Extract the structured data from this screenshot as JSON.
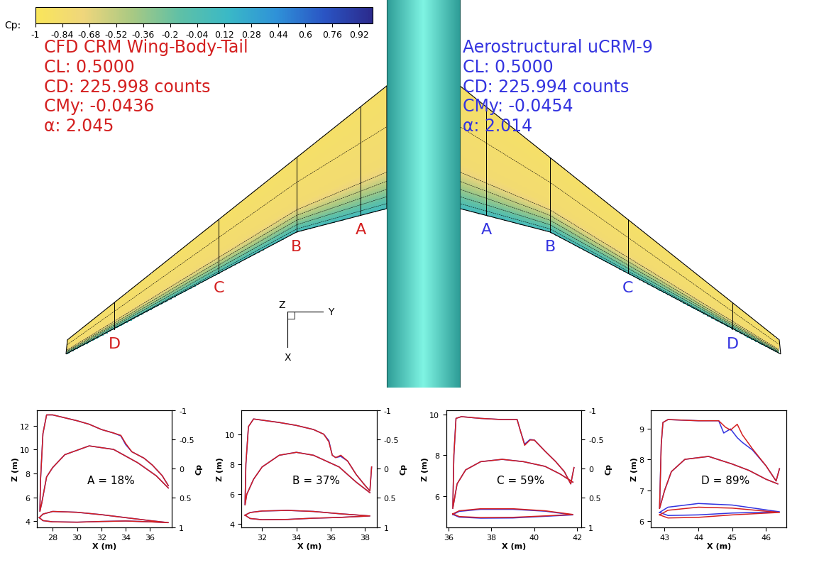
{
  "chart_data": [
    {
      "type": "contour",
      "colorbar": {
        "label": "Cp:",
        "range": [
          -1,
          1.0
        ],
        "ticks": [
          -1,
          -0.84,
          -0.68,
          -0.52,
          -0.36,
          -0.2,
          -0.04,
          0.12,
          0.28,
          0.44,
          0.6,
          0.76,
          0.92
        ]
      },
      "panels": [
        {
          "color": "#d42020",
          "lines": [
            "CFD CRM Wing-Body-Tail",
            "CL: 0.5000",
            "CD: 225.998 counts",
            "CMy: -0.0436",
            "α: 2.045"
          ]
        },
        {
          "color": "#3434e0",
          "lines": [
            "Aerostructural uCRM-9",
            "CL: 0.5000",
            "CD: 225.994 counts",
            "CMy: -0.0454",
            "α: 2.014"
          ]
        }
      ],
      "section_labels": [
        "A",
        "B",
        "C",
        "D"
      ],
      "triad_labels": [
        "Z",
        "Y",
        "X"
      ]
    },
    {
      "type": "line",
      "annotation": "A = 18%",
      "xlabel": "X (m)",
      "ylabel": "Z (m)",
      "y2label": "Cp",
      "xlim": [
        26.7,
        37.8
      ],
      "ylim": [
        3.5,
        13.3
      ],
      "y2lim": [
        1,
        -1
      ],
      "xticks": [
        28,
        30,
        32,
        34,
        36
      ],
      "yticks": [
        4,
        6,
        8,
        10,
        12
      ],
      "y2ticks": [
        -1,
        -0.5,
        0,
        0.5,
        1
      ],
      "series": [
        {
          "color": "#3434e0",
          "axis": "y2",
          "x": [
            37.5,
            36.5,
            35,
            33,
            31,
            29,
            28,
            27.5,
            27.1,
            26.95,
            27.0,
            27.2,
            27.5,
            28,
            30,
            31,
            32,
            33,
            33.6,
            34.0,
            34.5,
            35.5,
            36.2,
            37,
            37.5
          ],
          "values": [
            0.33,
            0.12,
            -0.1,
            -0.33,
            -0.39,
            -0.24,
            -0.02,
            0.14,
            0.59,
            0.73,
            0.2,
            -0.6,
            -0.92,
            -0.92,
            -0.82,
            -0.76,
            -0.67,
            -0.61,
            -0.56,
            -0.41,
            -0.29,
            -0.18,
            -0.06,
            0.12,
            0.29
          ]
        },
        {
          "color": "#d42020",
          "axis": "y2",
          "x": [
            37.5,
            36.5,
            35,
            33,
            31,
            29,
            28,
            27.5,
            27.1,
            26.95,
            27.0,
            27.2,
            27.5,
            28,
            30,
            31,
            32,
            33,
            33.6,
            34.0,
            34.5,
            35.5,
            36.2,
            37,
            37.5
          ],
          "values": [
            0.33,
            0.12,
            -0.1,
            -0.33,
            -0.39,
            -0.24,
            -0.02,
            0.14,
            0.59,
            0.73,
            0.2,
            -0.6,
            -0.92,
            -0.92,
            -0.82,
            -0.76,
            -0.67,
            -0.61,
            -0.57,
            -0.43,
            -0.29,
            -0.18,
            -0.06,
            0.12,
            0.29
          ]
        },
        {
          "color": "#3434e0",
          "x": [
            26.9,
            27.2,
            28,
            30,
            32,
            34,
            36,
            37.5,
            36,
            34,
            32,
            30,
            28,
            27.2,
            26.9
          ],
          "values": [
            4.3,
            4.6,
            4.82,
            4.75,
            4.55,
            4.3,
            4.05,
            3.88,
            3.95,
            4.02,
            3.98,
            3.92,
            3.95,
            4.05,
            4.3
          ]
        },
        {
          "color": "#d42020",
          "x": [
            26.9,
            27.2,
            28,
            30,
            32,
            34,
            36,
            37.5,
            36,
            34,
            32,
            30,
            28,
            27.2,
            26.9
          ],
          "values": [
            4.3,
            4.6,
            4.82,
            4.75,
            4.55,
            4.3,
            4.05,
            3.88,
            3.95,
            4.02,
            3.98,
            3.92,
            3.95,
            4.05,
            4.3
          ]
        }
      ]
    },
    {
      "type": "line",
      "annotation": "B = 37%",
      "xlabel": "X (m)",
      "ylabel": "Z (m)",
      "y2label": "Cp",
      "xlim": [
        30.8,
        38.7
      ],
      "ylim": [
        3.8,
        11.6
      ],
      "y2lim": [
        1,
        -1
      ],
      "xticks": [
        32,
        34,
        36,
        38
      ],
      "yticks": [
        4,
        6,
        8,
        10
      ],
      "y2ticks": [
        -1,
        -0.5,
        0,
        0.5,
        1
      ],
      "series": [
        {
          "color": "#3434e0",
          "axis": "y2",
          "x": [
            38.3,
            37.5,
            36.5,
            35,
            34,
            33,
            32,
            31.5,
            31.1,
            31.0,
            31.05,
            31.2,
            31.5,
            32,
            33,
            34,
            35,
            35.6,
            35.9,
            36.1,
            36.3,
            36.6,
            37.0,
            37.5,
            38.0,
            38.3,
            38.4
          ],
          "values": [
            0.41,
            0.23,
            -0.03,
            -0.23,
            -0.28,
            -0.23,
            -0.03,
            0.18,
            0.44,
            0.62,
            -0.08,
            -0.72,
            -0.85,
            -0.83,
            -0.79,
            -0.74,
            -0.67,
            -0.59,
            -0.48,
            -0.23,
            -0.19,
            -0.21,
            -0.13,
            0.1,
            0.28,
            0.38,
            -0.03
          ]
        },
        {
          "color": "#d42020",
          "axis": "y2",
          "x": [
            38.3,
            37.5,
            36.5,
            35,
            34,
            33,
            32,
            31.5,
            31.1,
            31.0,
            31.05,
            31.2,
            31.5,
            32,
            33,
            34,
            35,
            35.6,
            35.9,
            36.1,
            36.3,
            36.6,
            37.0,
            37.5,
            38.0,
            38.3,
            38.4
          ],
          "values": [
            0.41,
            0.23,
            -0.03,
            -0.23,
            -0.28,
            -0.23,
            -0.03,
            0.18,
            0.44,
            0.62,
            -0.08,
            -0.72,
            -0.85,
            -0.83,
            -0.79,
            -0.74,
            -0.67,
            -0.59,
            -0.46,
            -0.23,
            -0.19,
            -0.23,
            -0.13,
            0.1,
            0.28,
            0.38,
            -0.03
          ]
        },
        {
          "color": "#3434e0",
          "x": [
            31.0,
            31.3,
            32,
            33.5,
            35,
            36.5,
            38.3,
            36.5,
            35,
            33.5,
            32,
            31.3,
            31.0
          ],
          "values": [
            4.6,
            4.78,
            4.88,
            4.92,
            4.85,
            4.7,
            4.55,
            4.45,
            4.4,
            4.32,
            4.3,
            4.38,
            4.6
          ]
        },
        {
          "color": "#d42020",
          "x": [
            31.0,
            31.3,
            32,
            33.5,
            35,
            36.5,
            38.3,
            36.5,
            35,
            33.5,
            32,
            31.3,
            31.0
          ],
          "values": [
            4.6,
            4.78,
            4.88,
            4.92,
            4.85,
            4.7,
            4.55,
            4.45,
            4.4,
            4.32,
            4.3,
            4.38,
            4.6
          ]
        }
      ]
    },
    {
      "type": "line",
      "annotation": "C = 59%",
      "xlabel": "X (m)",
      "ylabel": "Z (m)",
      "y2label": "Cp",
      "xlim": [
        35.9,
        42.2
      ],
      "ylim": [
        4.5,
        10.2
      ],
      "y2lim": [
        1,
        -1
      ],
      "xticks": [
        36,
        38,
        40,
        42
      ],
      "yticks": [
        6,
        8,
        10
      ],
      "y2ticks": [
        -1,
        -0.5,
        0,
        0.5,
        1
      ],
      "series": [
        {
          "color": "#3434e0",
          "axis": "y2",
          "x": [
            41.8,
            41.2,
            40.5,
            39.5,
            38.5,
            37.5,
            36.8,
            36.4,
            36.2,
            36.25,
            36.35,
            36.6,
            37.5,
            38.5,
            39.2,
            39.35,
            39.55,
            39.8,
            40.0,
            40.5,
            41.0,
            41.4,
            41.7,
            41.85
          ],
          "values": [
            0.23,
            0.09,
            -0.04,
            -0.12,
            -0.16,
            -0.12,
            0.02,
            0.26,
            0.68,
            -0.23,
            -0.86,
            -0.89,
            -0.86,
            -0.84,
            -0.84,
            -0.65,
            -0.42,
            -0.5,
            -0.49,
            -0.3,
            -0.12,
            0.05,
            0.26,
            -0.02
          ]
        },
        {
          "color": "#d42020",
          "axis": "y2",
          "x": [
            41.8,
            41.2,
            40.5,
            39.5,
            38.5,
            37.5,
            36.8,
            36.4,
            36.2,
            36.25,
            36.35,
            36.6,
            37.5,
            38.5,
            39.2,
            39.35,
            39.55,
            39.8,
            40.0,
            40.5,
            41.0,
            41.4,
            41.7,
            41.85
          ],
          "values": [
            0.23,
            0.09,
            -0.04,
            -0.12,
            -0.16,
            -0.12,
            0.02,
            0.26,
            0.68,
            -0.23,
            -0.86,
            -0.89,
            -0.86,
            -0.84,
            -0.84,
            -0.65,
            -0.4,
            -0.49,
            -0.49,
            -0.3,
            -0.12,
            0.05,
            0.26,
            -0.02
          ]
        },
        {
          "color": "#3434e0",
          "x": [
            36.2,
            36.5,
            37.5,
            39,
            40.5,
            41.8,
            40.5,
            39,
            37.5,
            36.5,
            36.2
          ],
          "values": [
            5.12,
            5.27,
            5.37,
            5.37,
            5.28,
            5.1,
            5.03,
            4.95,
            4.94,
            4.99,
            5.12
          ]
        },
        {
          "color": "#d42020",
          "x": [
            36.2,
            36.5,
            37.5,
            39,
            40.5,
            41.8,
            40.5,
            39,
            37.5,
            36.5,
            36.2
          ],
          "values": [
            5.15,
            5.3,
            5.4,
            5.4,
            5.3,
            5.12,
            5.05,
            4.98,
            4.97,
            5.02,
            5.15
          ]
        }
      ]
    },
    {
      "type": "line",
      "annotation": "D = 89%",
      "xlabel": "X (m)",
      "ylabel": "Z (m)",
      "xlim": [
        42.6,
        46.6
      ],
      "ylim": [
        5.8,
        9.6
      ],
      "y2lim": [
        1,
        -1
      ],
      "xticks": [
        43,
        44,
        45,
        46
      ],
      "yticks": [
        6,
        7,
        8,
        9
      ],
      "series": [
        {
          "color": "#3434e0",
          "axis": "y2",
          "x": [
            46.35,
            46.0,
            45.5,
            45.0,
            44.3,
            43.6,
            43.2,
            43.0,
            42.85,
            42.9,
            42.95,
            43.1,
            44.0,
            44.6,
            44.75,
            44.95,
            45.15,
            45.3,
            45.6,
            46.0,
            46.3,
            46.4
          ],
          "values": [
            0.26,
            0.18,
            0.03,
            -0.08,
            -0.21,
            -0.16,
            0.05,
            0.37,
            0.68,
            -0.42,
            -0.79,
            -0.84,
            -0.82,
            -0.82,
            -0.61,
            -0.68,
            -0.53,
            -0.45,
            -0.32,
            -0.05,
            0.21,
            0.0
          ]
        },
        {
          "color": "#d42020",
          "axis": "y2",
          "x": [
            46.35,
            46.0,
            45.5,
            45.0,
            44.3,
            43.6,
            43.2,
            43.0,
            42.85,
            42.9,
            42.95,
            43.1,
            44.0,
            44.6,
            44.8,
            44.95,
            45.15,
            45.3,
            45.6,
            46.0,
            46.3,
            46.4
          ],
          "values": [
            0.26,
            0.18,
            0.03,
            -0.08,
            -0.21,
            -0.16,
            0.05,
            0.37,
            0.68,
            -0.42,
            -0.79,
            -0.84,
            -0.82,
            -0.82,
            -0.71,
            -0.66,
            -0.76,
            -0.58,
            -0.34,
            -0.05,
            0.21,
            0.0
          ]
        },
        {
          "color": "#3434e0",
          "x": [
            42.85,
            43.1,
            44,
            45,
            46.4,
            45,
            44,
            43.1,
            42.85
          ],
          "values": [
            6.28,
            6.45,
            6.57,
            6.52,
            6.3,
            6.26,
            6.2,
            6.18,
            6.28
          ]
        },
        {
          "color": "#d42020",
          "x": [
            42.85,
            43.1,
            44,
            45,
            46.4,
            45,
            44,
            43.1,
            42.85
          ],
          "values": [
            6.2,
            6.35,
            6.45,
            6.42,
            6.28,
            6.2,
            6.12,
            6.1,
            6.2
          ]
        }
      ]
    }
  ]
}
